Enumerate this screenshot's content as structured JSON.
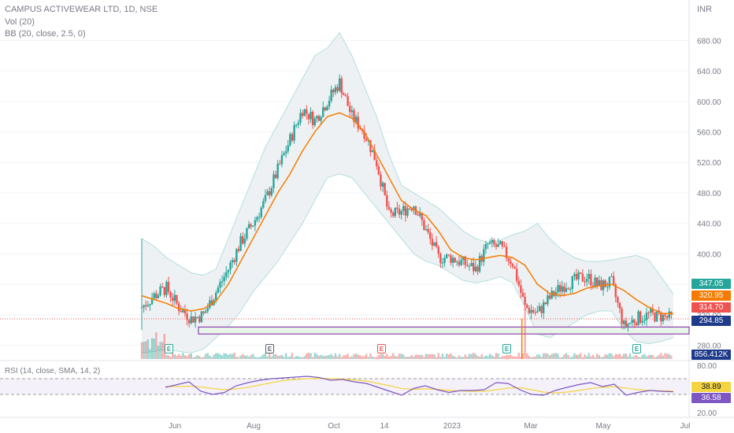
{
  "header": {
    "title": "CAMPUS ACTIVEWEAR LTD, 1D, NSE",
    "vol": "Vol (20)",
    "bb": "BB (20, close, 2.5, 0)",
    "currency": "INR",
    "rsi_label": "RSI (14, close, SMA, 14, 2)"
  },
  "badges": {
    "bb_upper": "347.05",
    "bb_basis": "320.95",
    "last_price": "314.70",
    "support": "294.85",
    "volume": "856.412K",
    "rsi_sma": "38.89",
    "rsi": "36.58"
  },
  "earnings_marker": "E",
  "colors": {
    "up": "#26a69a",
    "down": "#ef5350",
    "basis": "#f57c00",
    "band_fill": "#eef1f4",
    "band_line": "#b2dfdb",
    "rsi_line": "#7e57c2",
    "rsi_sma": "#f5d442",
    "support_zone": "#7b1fa2",
    "earnings_green": "#26a69a",
    "earnings_red": "#ef5350",
    "earnings_gray": "#5d606b"
  },
  "chart_data": {
    "type": "candlestick",
    "price_axis": {
      "ticks": [
        280,
        320,
        360,
        400,
        440,
        480,
        520,
        560,
        600,
        640,
        680
      ],
      "tick_labels": [
        "280.00",
        "320.00",
        "360.00",
        "400.00",
        "440.00",
        "480.00",
        "520.00",
        "560.00",
        "600.00",
        "640.00",
        "680.00"
      ],
      "range": [
        262,
        700
      ]
    },
    "rsi_axis": {
      "ticks": [
        80,
        20
      ],
      "tick_labels": [
        "80.00",
        "20.00"
      ],
      "upper_band": 70,
      "lower_band": 30
    },
    "time_axis": {
      "labels": [
        "Jun",
        "Aug",
        "Oct",
        "14",
        "2023",
        "Mar",
        "May",
        "Jul"
      ]
    },
    "price_series": [
      {
        "d": "May 2",
        "c": 330
      },
      {
        "d": "May 12",
        "c": 345
      },
      {
        "d": "May 22",
        "c": 355
      },
      {
        "d": "Jun 1",
        "c": 330
      },
      {
        "d": "Jun 10",
        "c": 315
      },
      {
        "d": "Jun 20",
        "c": 320
      },
      {
        "d": "Jul 1",
        "c": 350
      },
      {
        "d": "Jul 10",
        "c": 380
      },
      {
        "d": "Jul 20",
        "c": 415
      },
      {
        "d": "Aug 1",
        "c": 440
      },
      {
        "d": "Aug 12",
        "c": 470
      },
      {
        "d": "Aug 22",
        "c": 510
      },
      {
        "d": "Sep 1",
        "c": 550
      },
      {
        "d": "Sep 10",
        "c": 590
      },
      {
        "d": "Sep 20",
        "c": 575
      },
      {
        "d": "Oct 1",
        "c": 600
      },
      {
        "d": "Oct 10",
        "c": 625
      },
      {
        "d": "Oct 20",
        "c": 580
      },
      {
        "d": "Nov 1",
        "c": 560
      },
      {
        "d": "Nov 10",
        "c": 520
      },
      {
        "d": "Nov 18",
        "c": 450
      },
      {
        "d": "Dec 1",
        "c": 455
      },
      {
        "d": "Dec 10",
        "c": 465
      },
      {
        "d": "Dec 20",
        "c": 430
      },
      {
        "d": "Jan 1",
        "c": 395
      },
      {
        "d": "Jan 20",
        "c": 395
      },
      {
        "d": "Feb 1",
        "c": 388
      },
      {
        "d": "Feb 10",
        "c": 380
      },
      {
        "d": "Feb 16",
        "c": 412
      },
      {
        "d": "Feb 25",
        "c": 408
      },
      {
        "d": "Mar 5",
        "c": 388
      },
      {
        "d": "Mar 14",
        "c": 330
      },
      {
        "d": "Mar 20",
        "c": 322
      },
      {
        "d": "Apr 1",
        "c": 342
      },
      {
        "d": "Apr 12",
        "c": 358
      },
      {
        "d": "Apr 24",
        "c": 365
      },
      {
        "d": "May 2",
        "c": 370
      },
      {
        "d": "May 8",
        "c": 358
      },
      {
        "d": "May 12",
        "c": 362
      },
      {
        "d": "May 18",
        "c": 305
      },
      {
        "d": "May 25",
        "c": 315
      },
      {
        "d": "Jun 2",
        "c": 320
      },
      {
        "d": "Jun 12",
        "c": 318
      },
      {
        "d": "Jun 20",
        "c": 314.7
      }
    ],
    "bb_basis_series": [
      345,
      340,
      335,
      328,
      325,
      328,
      338,
      360,
      390,
      420,
      450,
      480,
      505,
      535,
      560,
      580,
      585,
      578,
      560,
      530,
      500,
      470,
      458,
      450,
      430,
      405,
      395,
      392,
      395,
      398,
      395,
      385,
      360,
      348,
      345,
      348,
      355,
      358,
      360,
      352,
      340,
      330,
      322,
      320.95
    ],
    "bb_upper_series": [
      420,
      410,
      395,
      385,
      375,
      372,
      380,
      420,
      460,
      500,
      540,
      570,
      600,
      630,
      660,
      670,
      690,
      660,
      620,
      580,
      530,
      490,
      480,
      470,
      460,
      445,
      430,
      420,
      415,
      418,
      425,
      430,
      440,
      420,
      405,
      395,
      390,
      390,
      392,
      395,
      398,
      392,
      370,
      347.05
    ],
    "bb_lower_series": [
      270,
      272,
      275,
      272,
      270,
      275,
      290,
      305,
      325,
      350,
      370,
      390,
      415,
      440,
      470,
      500,
      505,
      500,
      480,
      460,
      440,
      420,
      400,
      390,
      385,
      375,
      365,
      362,
      365,
      370,
      362,
      330,
      295,
      290,
      300,
      310,
      320,
      325,
      325,
      300,
      285,
      282,
      285,
      290
    ],
    "support_zone": {
      "top": 304,
      "bottom": 294.85
    },
    "rsi_series": [
      48,
      55,
      62,
      38,
      30,
      35,
      52,
      60,
      66,
      70,
      72,
      74,
      76,
      73,
      66,
      68,
      62,
      58,
      48,
      38,
      28,
      45,
      52,
      42,
      35,
      40,
      40,
      42,
      60,
      58,
      42,
      30,
      28,
      40,
      48,
      55,
      60,
      50,
      56,
      28,
      35,
      40,
      38,
      36.58
    ],
    "rsi_sma_series": [
      50,
      50,
      51,
      49,
      45,
      42,
      44,
      48,
      54,
      60,
      65,
      68,
      70,
      71,
      70,
      69,
      67,
      64,
      58,
      52,
      45,
      43,
      44,
      43,
      40,
      39,
      38,
      38,
      42,
      46,
      47,
      42,
      36,
      34,
      36,
      40,
      45,
      48,
      50,
      46,
      42,
      40,
      39,
      38.89
    ]
  }
}
